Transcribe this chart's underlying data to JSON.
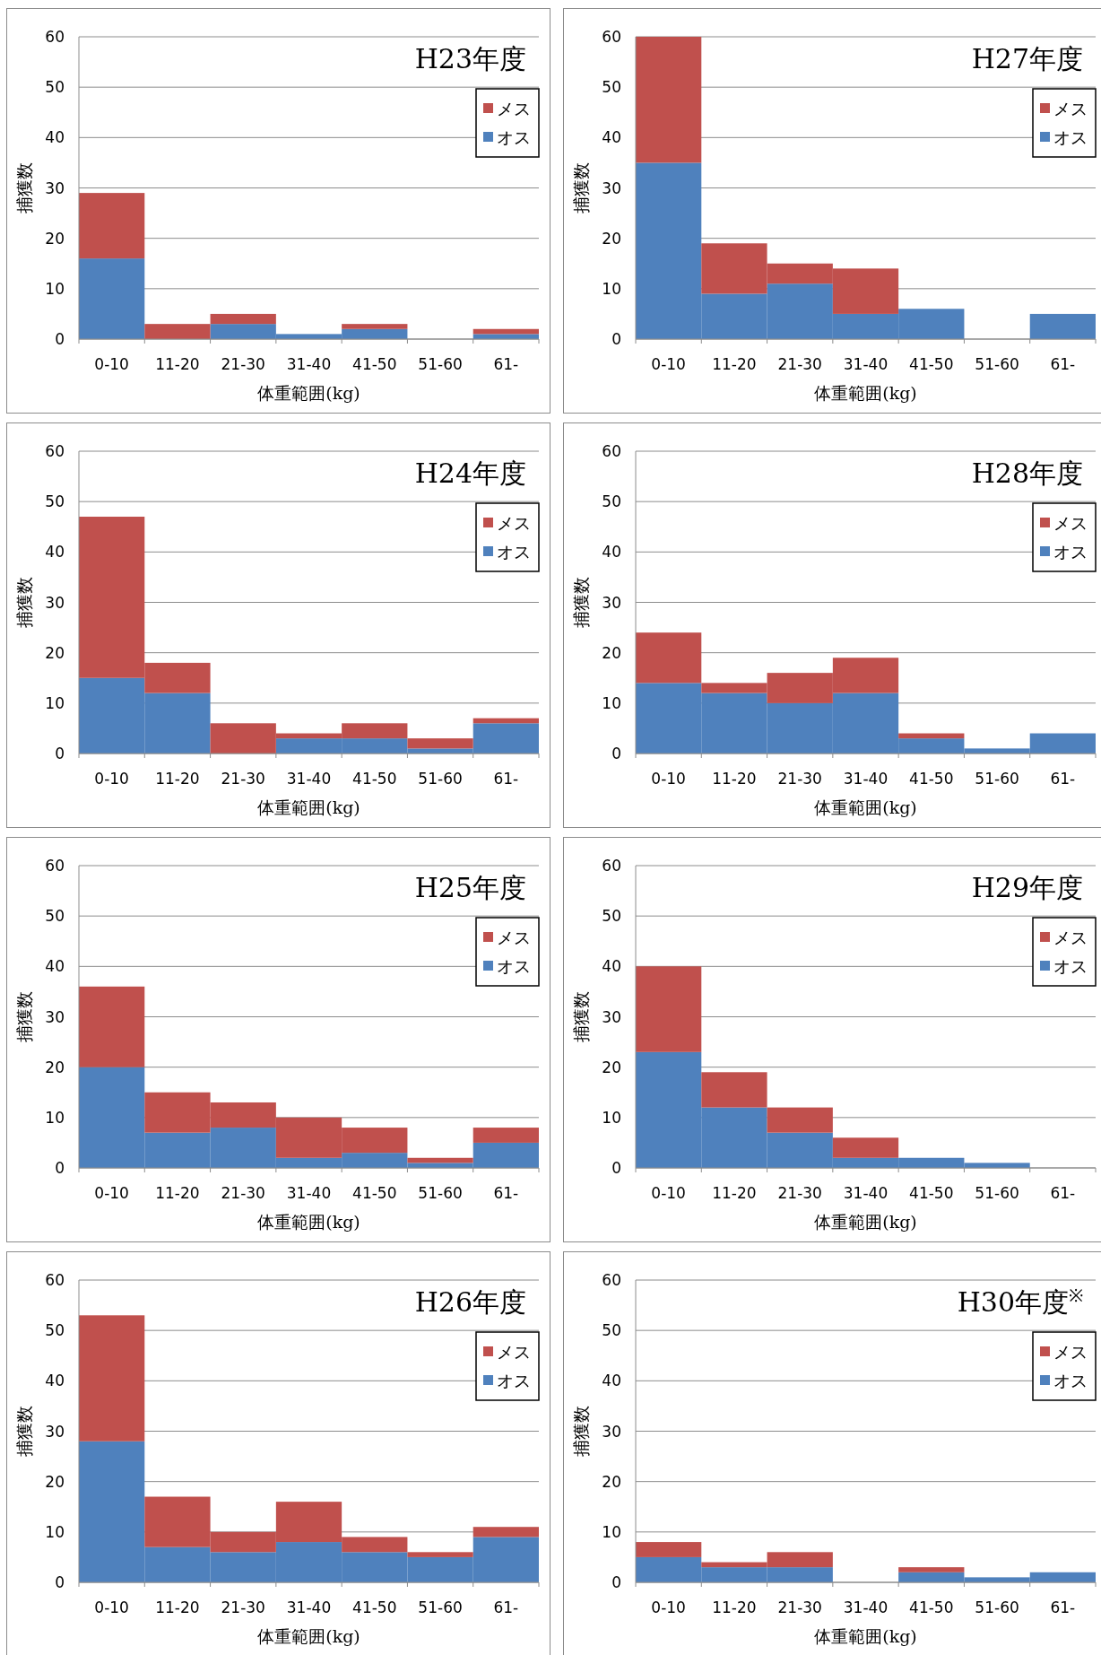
{
  "chart_data": [
    {
      "type": "bar",
      "stacked": true,
      "title": "H23年度",
      "xlabel": "体重範囲(kg)",
      "ylabel": "捕獲数",
      "categories": [
        "0-10",
        "11-20",
        "21-30",
        "31-40",
        "41-50",
        "51-60",
        "61-"
      ],
      "ylim": [
        0,
        60
      ],
      "yticks": [
        0,
        10,
        20,
        30,
        40,
        50,
        60
      ],
      "grid": "y",
      "legend": "top right",
      "series": [
        {
          "name": "オス",
          "color": "#4f81bd",
          "values": [
            16,
            0,
            3,
            1,
            2,
            0,
            1
          ]
        },
        {
          "name": "メス",
          "color": "#c0504d",
          "values": [
            13,
            3,
            2,
            0,
            1,
            0,
            1
          ]
        }
      ]
    },
    {
      "type": "bar",
      "stacked": true,
      "title": "H27年度",
      "xlabel": "体重範囲(kg)",
      "ylabel": "捕獲数",
      "categories": [
        "0-10",
        "11-20",
        "21-30",
        "31-40",
        "41-50",
        "51-60",
        "61-"
      ],
      "ylim": [
        0,
        60
      ],
      "yticks": [
        0,
        10,
        20,
        30,
        40,
        50,
        60
      ],
      "grid": "y",
      "legend": "top right",
      "series": [
        {
          "name": "オス",
          "color": "#4f81bd",
          "values": [
            35,
            9,
            11,
            5,
            6,
            0,
            5
          ]
        },
        {
          "name": "メス",
          "color": "#c0504d",
          "values": [
            25,
            10,
            4,
            9,
            0,
            0,
            0
          ]
        }
      ]
    },
    {
      "type": "bar",
      "stacked": true,
      "title": "H24年度",
      "xlabel": "体重範囲(kg)",
      "ylabel": "捕獲数",
      "categories": [
        "0-10",
        "11-20",
        "21-30",
        "31-40",
        "41-50",
        "51-60",
        "61-"
      ],
      "ylim": [
        0,
        60
      ],
      "yticks": [
        0,
        10,
        20,
        30,
        40,
        50,
        60
      ],
      "grid": "y",
      "legend": "top right",
      "series": [
        {
          "name": "オス",
          "color": "#4f81bd",
          "values": [
            15,
            12,
            0,
            3,
            3,
            1,
            6
          ]
        },
        {
          "name": "メス",
          "color": "#c0504d",
          "values": [
            32,
            6,
            6,
            1,
            3,
            2,
            1
          ]
        }
      ]
    },
    {
      "type": "bar",
      "stacked": true,
      "title": "H28年度",
      "xlabel": "体重範囲(kg)",
      "ylabel": "捕獲数",
      "categories": [
        "0-10",
        "11-20",
        "21-30",
        "31-40",
        "41-50",
        "51-60",
        "61-"
      ],
      "ylim": [
        0,
        60
      ],
      "yticks": [
        0,
        10,
        20,
        30,
        40,
        50,
        60
      ],
      "grid": "y",
      "legend": "top right",
      "series": [
        {
          "name": "オス",
          "color": "#4f81bd",
          "values": [
            14,
            12,
            10,
            12,
            3,
            1,
            4
          ]
        },
        {
          "name": "メス",
          "color": "#c0504d",
          "values": [
            10,
            2,
            6,
            7,
            1,
            0,
            0
          ]
        }
      ]
    },
    {
      "type": "bar",
      "stacked": true,
      "title": "H25年度",
      "xlabel": "体重範囲(kg)",
      "ylabel": "捕獲数",
      "categories": [
        "0-10",
        "11-20",
        "21-30",
        "31-40",
        "41-50",
        "51-60",
        "61-"
      ],
      "ylim": [
        0,
        60
      ],
      "yticks": [
        0,
        10,
        20,
        30,
        40,
        50,
        60
      ],
      "grid": "y",
      "legend": "top right",
      "series": [
        {
          "name": "オス",
          "color": "#4f81bd",
          "values": [
            20,
            7,
            8,
            2,
            3,
            1,
            5
          ]
        },
        {
          "name": "メス",
          "color": "#c0504d",
          "values": [
            16,
            8,
            5,
            8,
            5,
            1,
            3
          ]
        }
      ]
    },
    {
      "type": "bar",
      "stacked": true,
      "title": "H29年度",
      "xlabel": "体重範囲(kg)",
      "ylabel": "捕獲数",
      "categories": [
        "0-10",
        "11-20",
        "21-30",
        "31-40",
        "41-50",
        "51-60",
        "61-"
      ],
      "ylim": [
        0,
        60
      ],
      "yticks": [
        0,
        10,
        20,
        30,
        40,
        50,
        60
      ],
      "grid": "y",
      "legend": "top right",
      "series": [
        {
          "name": "オス",
          "color": "#4f81bd",
          "values": [
            23,
            12,
            7,
            2,
            2,
            1,
            0
          ]
        },
        {
          "name": "メス",
          "color": "#c0504d",
          "values": [
            17,
            7,
            5,
            4,
            0,
            0,
            0
          ]
        }
      ]
    },
    {
      "type": "bar",
      "stacked": true,
      "title": "H26年度",
      "xlabel": "体重範囲(kg)",
      "ylabel": "捕獲数",
      "categories": [
        "0-10",
        "11-20",
        "21-30",
        "31-40",
        "41-50",
        "51-60",
        "61-"
      ],
      "ylim": [
        0,
        60
      ],
      "yticks": [
        0,
        10,
        20,
        30,
        40,
        50,
        60
      ],
      "grid": "y",
      "legend": "top right",
      "series": [
        {
          "name": "オス",
          "color": "#4f81bd",
          "values": [
            28,
            7,
            6,
            8,
            6,
            5,
            9
          ]
        },
        {
          "name": "メス",
          "color": "#c0504d",
          "values": [
            25,
            10,
            4,
            8,
            3,
            1,
            2
          ]
        }
      ]
    },
    {
      "type": "bar",
      "stacked": true,
      "title": "H30年度$^{※}$",
      "xlabel": "体重範囲(kg)",
      "ylabel": "捕獲数",
      "categories": [
        "0-10",
        "11-20",
        "21-30",
        "31-40",
        "41-50",
        "51-60",
        "61-"
      ],
      "ylim": [
        0,
        60
      ],
      "yticks": [
        0,
        10,
        20,
        30,
        40,
        50,
        60
      ],
      "grid": "y",
      "legend": "top right",
      "series": [
        {
          "name": "オス",
          "color": "#4f81bd",
          "values": [
            5,
            3,
            3,
            0,
            2,
            1,
            2
          ]
        },
        {
          "name": "メス",
          "color": "#c0504d",
          "values": [
            3,
            1,
            3,
            0,
            1,
            0,
            0
          ]
        }
      ]
    }
  ]
}
